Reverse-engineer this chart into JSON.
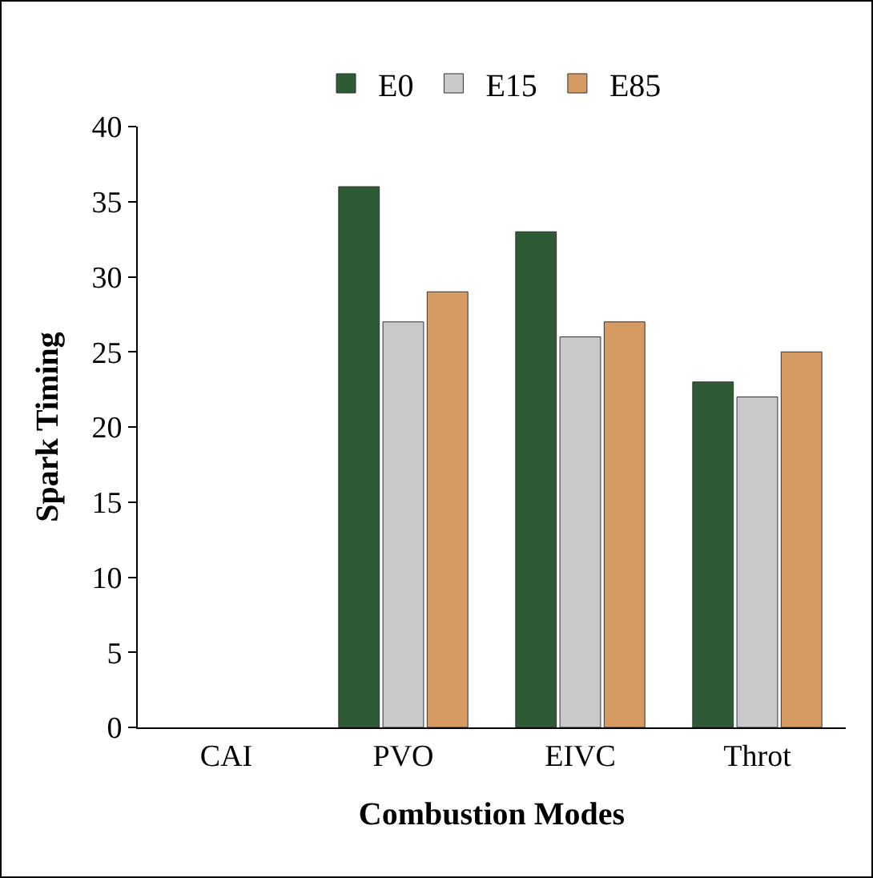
{
  "chart_data": {
    "type": "bar",
    "xlabel": "Combustion Modes",
    "ylabel": "Spark Timing",
    "categories": [
      "CAI",
      "PVO",
      "EIVC",
      "Throt"
    ],
    "series": [
      {
        "name": "E0",
        "color": "#2e5a36",
        "values": [
          null,
          36,
          33,
          23
        ]
      },
      {
        "name": "E15",
        "color": "#c9c9c9",
        "values": [
          null,
          27,
          26,
          22
        ]
      },
      {
        "name": "E85",
        "color": "#d69b62",
        "values": [
          null,
          29,
          27,
          25
        ]
      }
    ],
    "ylim": [
      0,
      40
    ],
    "yticks": [
      0,
      5,
      10,
      15,
      20,
      25,
      30,
      35,
      40
    ],
    "grid": false,
    "legend": "top"
  }
}
